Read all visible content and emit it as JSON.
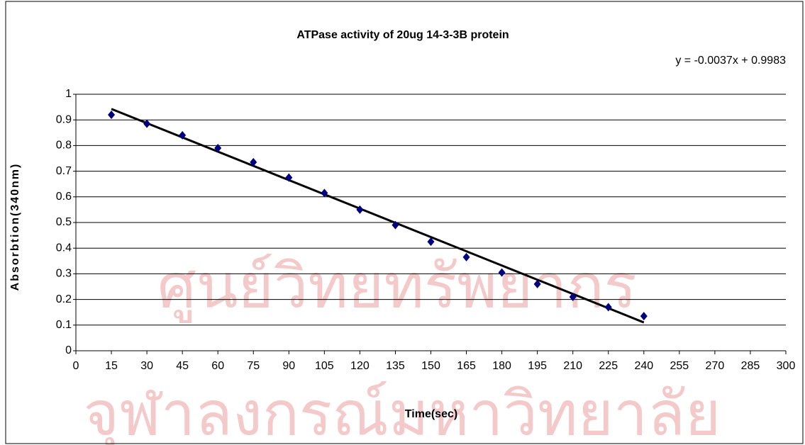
{
  "chart_data": {
    "type": "scatter",
    "title": "ATPase activity of  20ug 14-3-3B protein",
    "x_label": "Time(sec)",
    "y_label": "Absorbtion(340nm)",
    "x": [
      15,
      30,
      45,
      60,
      75,
      90,
      105,
      120,
      135,
      150,
      165,
      180,
      195,
      210,
      225,
      240
    ],
    "series": [
      {
        "color": "#000080",
        "values": [
          0.92,
          0.885,
          0.84,
          0.79,
          0.735,
          0.675,
          0.615,
          0.55,
          0.49,
          0.425,
          0.365,
          0.305,
          0.26,
          0.21,
          0.17,
          0.135
        ]
      }
    ],
    "trendline": {
      "slope": -0.0037,
      "intercept": 0.9983,
      "label": "y = -0.0037x + 0.9983",
      "color": "#000000"
    },
    "xlim": [
      0,
      300
    ],
    "xticks": [
      0,
      15,
      30,
      45,
      60,
      75,
      90,
      105,
      120,
      135,
      150,
      165,
      180,
      195,
      210,
      225,
      240,
      255,
      270,
      285,
      300
    ],
    "ylim": [
      0,
      1
    ],
    "yticks": [
      0,
      0.1,
      0.2,
      0.3,
      0.4,
      0.5,
      0.6,
      0.7,
      0.8,
      0.9,
      1
    ],
    "grid": true
  },
  "watermark": [
    "ศูนย์วิทยทรัพยากร",
    "จุฬาลงกรณ์มหาวิทยาลัย"
  ]
}
